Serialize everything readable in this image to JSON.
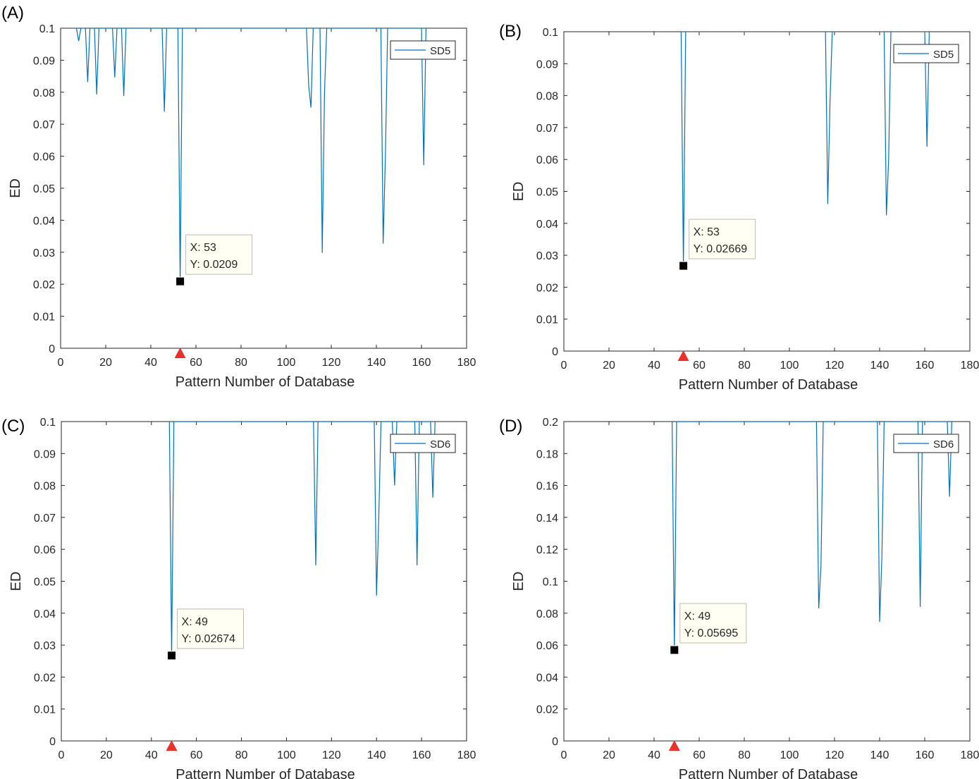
{
  "chart_data": [
    {
      "panel_label": "(A)",
      "type": "line",
      "xlabel": "Pattern Number of Database",
      "ylabel": "ED",
      "xlim": [
        0,
        180
      ],
      "ylim": [
        0,
        0.1
      ],
      "x_ticks": [
        0,
        20,
        40,
        60,
        80,
        100,
        120,
        140,
        160,
        180
      ],
      "y_ticks": [
        0,
        0.01,
        0.02,
        0.03,
        0.04,
        0.05,
        0.06,
        0.07,
        0.08,
        0.09,
        0.1
      ],
      "legend": {
        "entries": [
          "SD5"
        ],
        "placement": "top-right"
      },
      "series": [
        {
          "name": "SD5",
          "color": "#0072BD",
          "x": [
            7,
            8,
            9,
            11,
            12,
            13,
            15,
            16,
            17,
            23,
            24,
            25,
            27,
            28,
            29,
            45,
            46,
            47,
            52,
            53,
            54,
            109,
            110,
            111,
            112,
            115,
            116,
            117,
            118,
            142,
            143,
            144,
            145,
            160,
            161,
            162
          ],
          "y": [
            0.1,
            0.096,
            0.1,
            0.1,
            0.0832,
            0.1,
            0.1,
            0.0793,
            0.1,
            0.1,
            0.0846,
            0.1,
            0.1,
            0.0788,
            0.1,
            0.1,
            0.0739,
            0.1,
            0.1,
            0.0209,
            0.1,
            0.1,
            0.082,
            0.0752,
            0.1,
            0.1,
            0.0298,
            0.08,
            0.1,
            0.1,
            0.0327,
            0.06,
            0.1,
            0.1,
            0.0572,
            0.1
          ]
        }
      ],
      "datatip": {
        "x": 53,
        "y": 0.0209,
        "line1": "X: 53",
        "line2": "Y: 0.0209"
      },
      "marker_x": 53,
      "marker_color": "#E8322B"
    },
    {
      "panel_label": "(B)",
      "type": "line",
      "xlabel": "Pattern Number of Database",
      "ylabel": "ED",
      "xlim": [
        0,
        180
      ],
      "ylim": [
        0,
        0.1
      ],
      "x_ticks": [
        0,
        20,
        40,
        60,
        80,
        100,
        120,
        140,
        160,
        180
      ],
      "y_ticks": [
        0,
        0.01,
        0.02,
        0.03,
        0.04,
        0.05,
        0.06,
        0.07,
        0.08,
        0.09,
        0.1
      ],
      "legend": {
        "entries": [
          "SD5"
        ],
        "placement": "top-right"
      },
      "series": [
        {
          "name": "SD5",
          "color": "#0072BD",
          "x": [
            52,
            53,
            54,
            116,
            117,
            118,
            119,
            142,
            143,
            144,
            145,
            160,
            161,
            162
          ],
          "y": [
            0.1,
            0.02669,
            0.1,
            0.1,
            0.046,
            0.078,
            0.1,
            0.1,
            0.0425,
            0.06,
            0.1,
            0.1,
            0.064,
            0.1
          ]
        }
      ],
      "datatip": {
        "x": 53,
        "y": 0.02669,
        "line1": "X: 53",
        "line2": "Y: 0.02669"
      },
      "marker_x": 53,
      "marker_color": "#E8322B"
    },
    {
      "panel_label": "(C)",
      "type": "line",
      "xlabel": "Pattern Number of Database",
      "ylabel": "ED",
      "xlim": [
        0,
        180
      ],
      "ylim": [
        0,
        0.1
      ],
      "x_ticks": [
        0,
        20,
        40,
        60,
        80,
        100,
        120,
        140,
        160,
        180
      ],
      "y_ticks": [
        0,
        0.01,
        0.02,
        0.03,
        0.04,
        0.05,
        0.06,
        0.07,
        0.08,
        0.09,
        0.1
      ],
      "legend": {
        "entries": [
          "SD6"
        ],
        "placement": "top-right"
      },
      "series": [
        {
          "name": "SD6",
          "color": "#0072BD",
          "x": [
            48,
            49,
            50,
            112,
            113,
            114,
            139,
            140,
            141,
            142,
            147,
            148,
            149,
            157,
            158,
            159,
            164,
            165,
            166
          ],
          "y": [
            0.1,
            0.02674,
            0.1,
            0.1,
            0.055,
            0.1,
            0.1,
            0.0455,
            0.07,
            0.1,
            0.1,
            0.08,
            0.1,
            0.1,
            0.055,
            0.1,
            0.1,
            0.0762,
            0.1
          ]
        }
      ],
      "datatip": {
        "x": 49,
        "y": 0.02674,
        "line1": "X: 49",
        "line2": "Y: 0.02674"
      },
      "marker_x": 49,
      "marker_color": "#E8322B"
    },
    {
      "panel_label": "(D)",
      "type": "line",
      "xlabel": "Pattern Number of Database",
      "ylabel": "ED",
      "xlim": [
        0,
        180
      ],
      "ylim": [
        0,
        0.2
      ],
      "x_ticks": [
        0,
        20,
        40,
        60,
        80,
        100,
        120,
        140,
        160,
        180
      ],
      "y_ticks": [
        0,
        0.02,
        0.04,
        0.06,
        0.08,
        0.1,
        0.12,
        0.14,
        0.16,
        0.18,
        0.2
      ],
      "legend": {
        "entries": [
          "SD6"
        ],
        "placement": "top-right"
      },
      "series": [
        {
          "name": "SD6",
          "color": "#0072BD",
          "x": [
            48,
            49,
            50,
            112,
            113,
            114,
            115,
            139,
            140,
            141,
            142,
            157,
            158,
            159,
            170,
            171,
            172
          ],
          "y": [
            0.2,
            0.05695,
            0.2,
            0.2,
            0.083,
            0.11,
            0.2,
            0.2,
            0.0745,
            0.115,
            0.2,
            0.2,
            0.084,
            0.2,
            0.2,
            0.153,
            0.2
          ]
        }
      ],
      "datatip": {
        "x": 49,
        "y": 0.05695,
        "line1": "X: 49",
        "line2": "Y: 0.05695"
      },
      "marker_x": 49,
      "marker_color": "#E8322B"
    }
  ]
}
